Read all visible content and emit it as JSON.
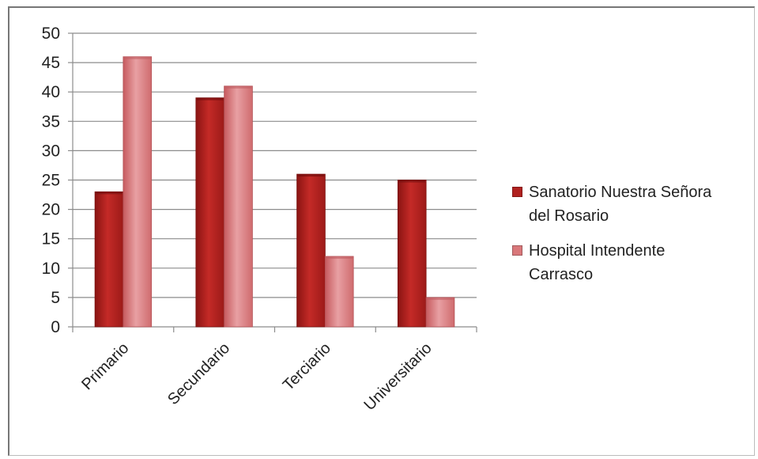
{
  "chart_data": {
    "type": "bar",
    "categories": [
      "Primario",
      "Secundario",
      "Terciario",
      "Universitario"
    ],
    "series": [
      {
        "name": "Sanatorio Nuestra Señora\ndel Rosario",
        "values": [
          23,
          39,
          26,
          25
        ],
        "color": "#b0211f"
      },
      {
        "name": "Hospital Intendente\nCarrasco",
        "values": [
          46,
          41,
          12,
          5
        ],
        "color": "#d9777a"
      }
    ],
    "title": "",
    "xlabel": "",
    "ylabel": "",
    "ylim": [
      0,
      50
    ],
    "yticks": [
      0,
      5,
      10,
      15,
      20,
      25,
      30,
      35,
      40,
      45,
      50
    ],
    "grid": true,
    "legend_position": "right"
  }
}
